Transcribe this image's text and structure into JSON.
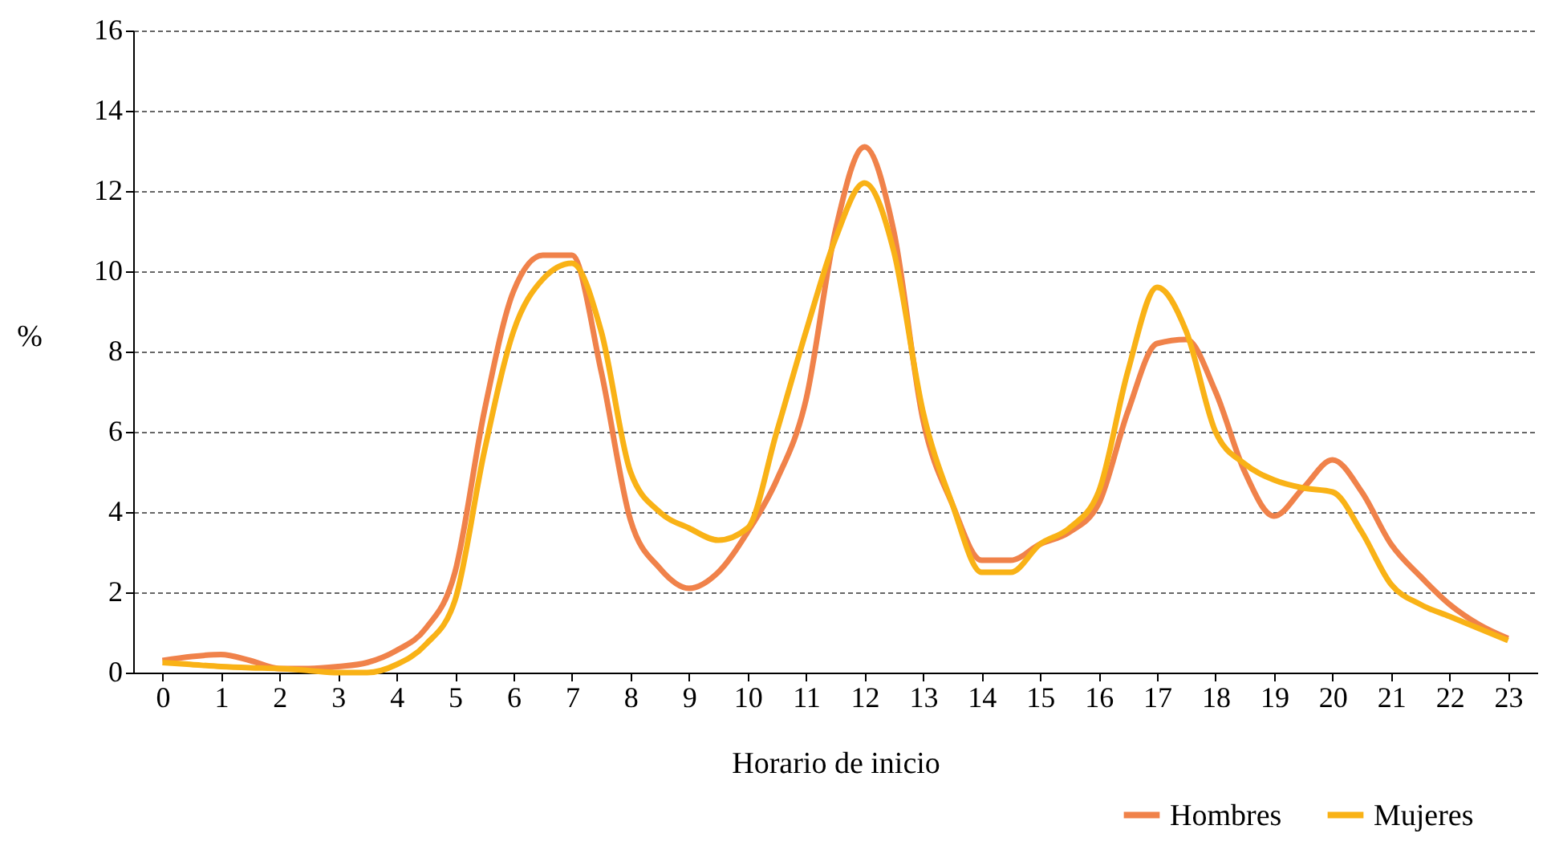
{
  "chart_data": {
    "type": "line",
    "xlabel": "Horario de inicio",
    "ylabel": "%",
    "x": [
      0,
      0.5,
      1,
      1.5,
      2,
      2.5,
      3,
      3.5,
      4,
      4.5,
      5,
      5.5,
      6,
      6.5,
      7,
      7.5,
      8,
      8.5,
      9,
      9.5,
      10,
      10.5,
      11,
      11.5,
      12,
      12.5,
      13,
      13.5,
      14,
      14.5,
      15,
      15.5,
      16,
      16.5,
      17,
      17.5,
      18,
      18.5,
      19,
      19.5,
      20,
      20.5,
      21,
      21.5,
      22,
      22.5,
      23
    ],
    "series": [
      {
        "name": "Hombres",
        "color": "#f0824a",
        "values": [
          0.3,
          0.4,
          0.45,
          0.3,
          0.1,
          0.1,
          0.15,
          0.25,
          0.55,
          1.1,
          2.5,
          6.5,
          9.5,
          10.4,
          10.4,
          7.5,
          3.8,
          2.6,
          2.1,
          2.5,
          3.5,
          4.8,
          6.8,
          11.0,
          13.1,
          11.0,
          6.3,
          4.2,
          2.8,
          2.8,
          3.2,
          3.5,
          4.2,
          6.5,
          8.2,
          8.3,
          7.0,
          5.0,
          3.9,
          4.6,
          5.3,
          4.5,
          3.2,
          2.4,
          1.7,
          1.2,
          0.85
        ]
      },
      {
        "name": "Mujeres",
        "color": "#f9b216",
        "values": [
          0.25,
          0.2,
          0.15,
          0.12,
          0.1,
          0.05,
          0.0,
          0.0,
          0.2,
          0.7,
          1.8,
          5.5,
          8.5,
          9.8,
          10.2,
          8.5,
          5.0,
          4.0,
          3.6,
          3.3,
          3.6,
          6.0,
          8.5,
          10.8,
          12.2,
          10.5,
          6.5,
          4.2,
          2.5,
          2.5,
          3.2,
          3.6,
          4.5,
          7.5,
          9.6,
          8.5,
          6.0,
          5.2,
          4.8,
          4.6,
          4.5,
          3.5,
          2.2,
          1.7,
          1.4,
          1.1,
          0.8
        ]
      }
    ],
    "xlim": [
      -0.5,
      23.5
    ],
    "xticks": [
      0,
      1,
      2,
      3,
      4,
      5,
      6,
      7,
      8,
      9,
      10,
      11,
      12,
      13,
      14,
      15,
      16,
      17,
      18,
      19,
      20,
      21,
      22,
      23
    ],
    "ylim": [
      0,
      16
    ],
    "yticks": [
      0,
      2,
      4,
      6,
      8,
      10,
      12,
      14,
      16
    ],
    "grid": "y",
    "legend": "bottom right",
    "marker": "none",
    "line_style": "solid"
  }
}
